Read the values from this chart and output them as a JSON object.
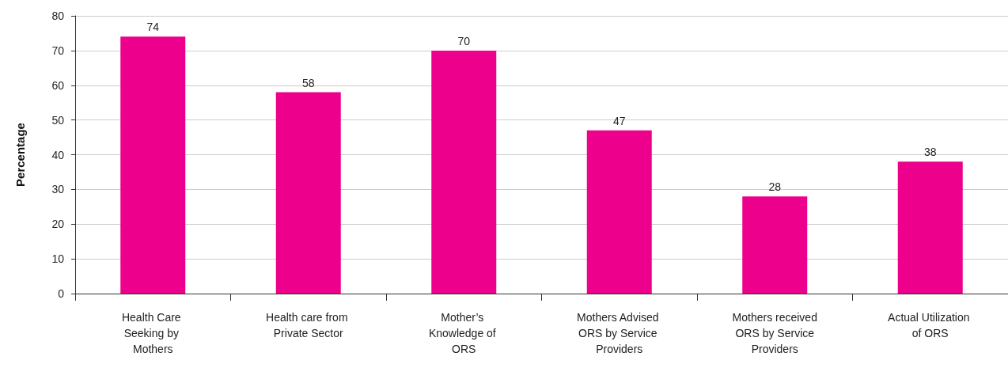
{
  "chart_data": {
    "type": "bar",
    "ylabel": "Percentage",
    "categories": [
      "Health Care Seeking by Mothers",
      "Health care from Private Sector",
      "Mother’s Knowledge of ORS",
      "Mothers Advised ORS by Service Providers",
      "Mothers received ORS by Service Providers",
      "Actual Utilization of ORS"
    ],
    "values": [
      74,
      58,
      70,
      47,
      28,
      38
    ],
    "color": "#ec008c",
    "ylim": [
      0,
      80
    ],
    "yticks": [
      0,
      10,
      20,
      30,
      40,
      50,
      60,
      70,
      80
    ],
    "grid": "y",
    "data_labels": true
  }
}
